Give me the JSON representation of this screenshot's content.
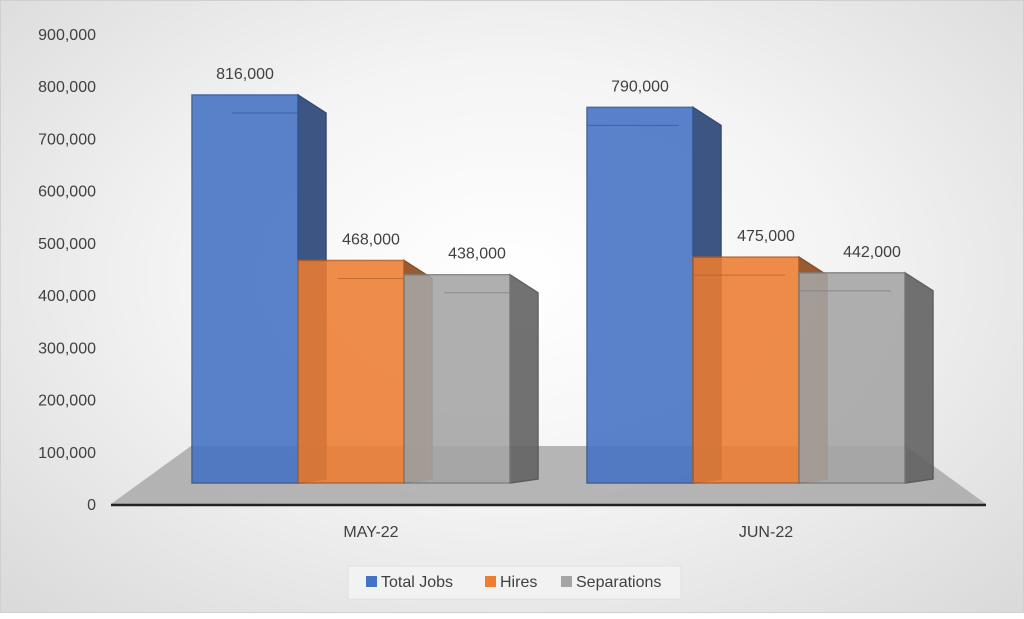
{
  "chart_data": {
    "type": "bar",
    "categories": [
      "MAY-22",
      "JUN-22"
    ],
    "series": [
      {
        "name": "Total Jobs",
        "values": [
          816000,
          790000
        ],
        "color": "#4472C4"
      },
      {
        "name": "Hires",
        "values": [
          468000,
          475000
        ],
        "color": "#ED7D31"
      },
      {
        "name": "Separations",
        "values": [
          438000,
          442000
        ],
        "color": "#A5A5A5"
      }
    ],
    "data_labels": [
      [
        "816,000",
        "468,000",
        "438,000"
      ],
      [
        "790,000",
        "475,000",
        "442,000"
      ]
    ],
    "ylim": [
      0,
      900000
    ],
    "yticks": [
      "0",
      "100,000",
      "200,000",
      "300,000",
      "400,000",
      "500,000",
      "600,000",
      "700,000",
      "800,000",
      "900,000"
    ],
    "legend": "bottom",
    "grid": false,
    "style": "3d-clustered"
  }
}
